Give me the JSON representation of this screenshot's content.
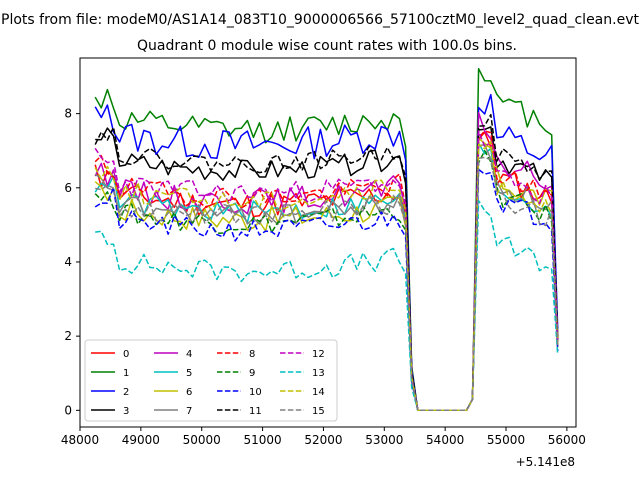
{
  "chart_data": {
    "type": "line",
    "suptitle": "Plots from file: modeM0/AS1A14_083T10_9000006566_57100cztM0_level2_quad_clean.evt",
    "title": "Quadrant 0 module wise count rates with 100.0s bins.",
    "xlabel": "",
    "ylabel": "",
    "x_offset_label": "+5.141e8",
    "xlim": [
      48000,
      56150
    ],
    "ylim": [
      -0.45,
      9.5
    ],
    "x_ticks": [
      48000,
      49000,
      50000,
      51000,
      52000,
      53000,
      54000,
      55000,
      56000
    ],
    "x_tick_labels": [
      "48000",
      "49000",
      "50000",
      "51000",
      "52000",
      "53000",
      "54000",
      "55000",
      "56000"
    ],
    "y_ticks": [
      0,
      2,
      4,
      6,
      8
    ],
    "y_tick_labels": [
      "0",
      "2",
      "4",
      "6",
      "8"
    ],
    "grid": false,
    "legend_position": "lower-left",
    "legend_columns": 4,
    "x": {
      "start": 48250,
      "step": 100,
      "count": 77
    },
    "series": [
      {
        "name": "0",
        "color": "#ff0000",
        "dash": "solid",
        "level_before": 5.9,
        "level_after": 6.5,
        "end_value": 1.8,
        "spread": 0.35,
        "seed": 11
      },
      {
        "name": "1",
        "color": "#008000",
        "dash": "solid",
        "level_before": 7.9,
        "level_after": 8.5,
        "end_value": 1.7,
        "spread": 0.35,
        "seed": 12
      },
      {
        "name": "2",
        "color": "#0000ff",
        "dash": "solid",
        "level_before": 7.5,
        "level_after": 7.6,
        "end_value": 2.2,
        "spread": 0.45,
        "seed": 13
      },
      {
        "name": "3",
        "color": "#000000",
        "dash": "solid",
        "level_before": 6.8,
        "level_after": 7.0,
        "end_value": 2.0,
        "spread": 0.3,
        "seed": 14
      },
      {
        "name": "4",
        "color": "#bf00bf",
        "dash": "solid",
        "level_before": 6.0,
        "level_after": 6.9,
        "end_value": 1.9,
        "spread": 0.35,
        "seed": 15
      },
      {
        "name": "5",
        "color": "#00bfbf",
        "dash": "solid",
        "level_before": 5.7,
        "level_after": 6.2,
        "end_value": 1.8,
        "spread": 0.3,
        "seed": 16
      },
      {
        "name": "6",
        "color": "#bfbf00",
        "dash": "solid",
        "level_before": 5.5,
        "level_after": 6.4,
        "end_value": 1.9,
        "spread": 0.35,
        "seed": 17
      },
      {
        "name": "7",
        "color": "#808080",
        "dash": "solid",
        "level_before": 5.6,
        "level_after": 6.3,
        "end_value": 1.7,
        "spread": 0.3,
        "seed": 18
      },
      {
        "name": "8",
        "color": "#ff0000",
        "dash": "dashed",
        "level_before": 6.1,
        "level_after": 6.6,
        "end_value": 1.8,
        "spread": 0.3,
        "seed": 19
      },
      {
        "name": "9",
        "color": "#008000",
        "dash": "dashed",
        "level_before": 5.4,
        "level_after": 6.0,
        "end_value": 1.7,
        "spread": 0.3,
        "seed": 20
      },
      {
        "name": "10",
        "color": "#0000ff",
        "dash": "dashed",
        "level_before": 5.2,
        "level_after": 5.9,
        "end_value": 1.6,
        "spread": 0.3,
        "seed": 21
      },
      {
        "name": "11",
        "color": "#000000",
        "dash": "dashed",
        "level_before": 7.0,
        "level_after": 7.1,
        "end_value": 1.9,
        "spread": 0.25,
        "seed": 22
      },
      {
        "name": "12",
        "color": "#bf00bf",
        "dash": "dashed",
        "level_before": 6.2,
        "level_after": 6.5,
        "end_value": 1.8,
        "spread": 0.3,
        "seed": 23
      },
      {
        "name": "13",
        "color": "#00bfbf",
        "dash": "dashed",
        "level_before": 4.1,
        "level_after": 4.7,
        "end_value": 1.5,
        "spread": 0.3,
        "seed": 24
      },
      {
        "name": "14",
        "color": "#bfbf00",
        "dash": "dashed",
        "level_before": 6.0,
        "level_after": 6.3,
        "end_value": 1.8,
        "spread": 0.3,
        "seed": 25
      },
      {
        "name": "15",
        "color": "#808080",
        "dash": "dashed",
        "level_before": 5.6,
        "level_after": 6.0,
        "end_value": 1.7,
        "spread": 0.3,
        "seed": 26
      }
    ],
    "gap": {
      "drop_start": 53350,
      "zero_start": 53550,
      "zero_end": 54350,
      "rise_end": 54550
    }
  }
}
